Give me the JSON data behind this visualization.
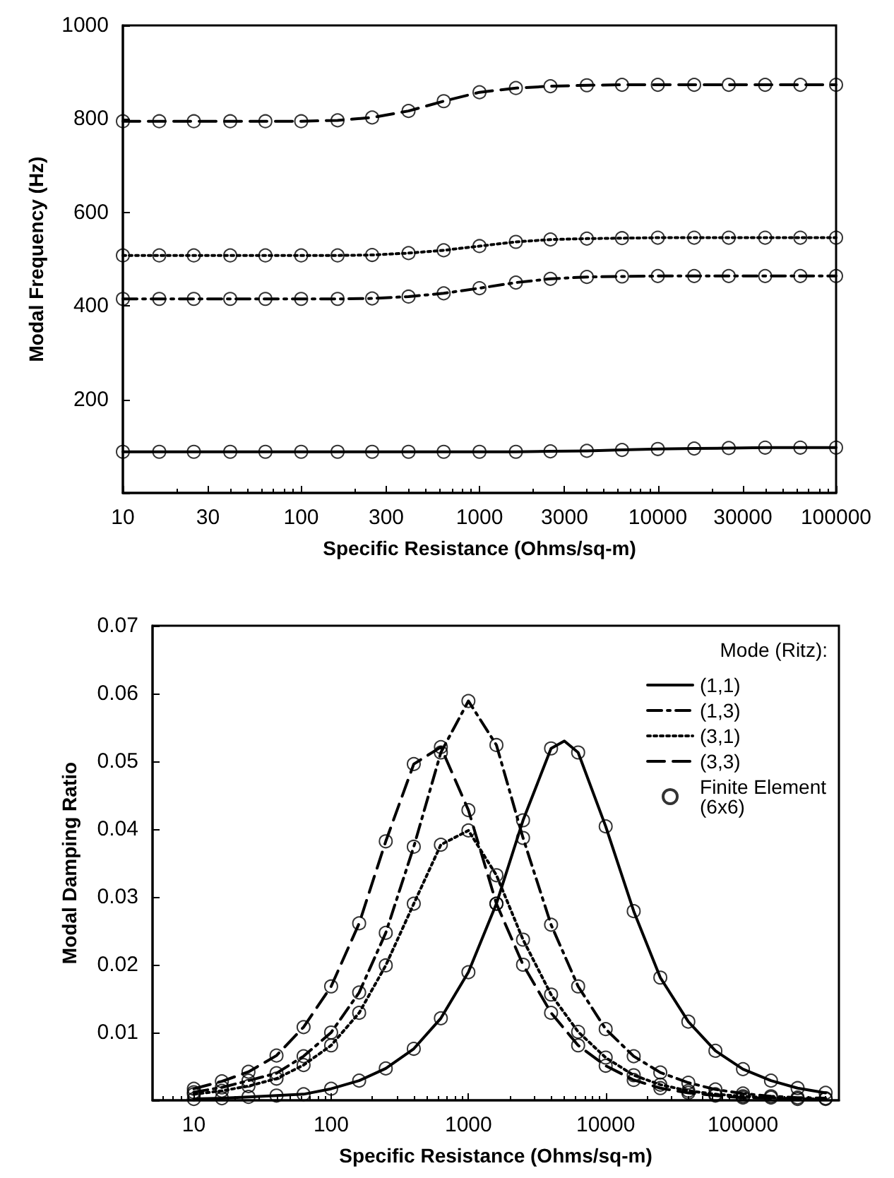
{
  "chart_data": [
    {
      "type": "line",
      "xlabel": "Specific Resistance (Ohms/sq-m)",
      "ylabel": "Modal Frequency (Hz)",
      "log": "x",
      "xlim": [
        10,
        100000
      ],
      "ylim": [
        0,
        1000
      ],
      "xticks": [
        10,
        30,
        100,
        300,
        1000,
        3000,
        10000,
        30000,
        100000
      ],
      "yticks": [
        {
          "value": 0,
          "label": null
        },
        200,
        400,
        600,
        800,
        1000
      ],
      "grid": false,
      "legend": false,
      "x": [
        10,
        16,
        25,
        40,
        63,
        100,
        160,
        250,
        400,
        630,
        1000,
        1600,
        2500,
        4000,
        6300,
        10000,
        16000,
        25000,
        40000,
        63000,
        100000
      ],
      "series": [
        {
          "type": "line",
          "color": "#000000",
          "line_style": "solid",
          "marker": "none",
          "values": [
            88,
            88,
            88,
            88,
            88,
            88,
            88,
            88,
            88,
            88,
            88,
            88,
            89,
            90,
            92,
            94,
            95,
            96,
            97,
            97,
            97
          ]
        },
        {
          "type": "line",
          "color": "#000000",
          "line_style": "dashdot",
          "marker": "none",
          "values": [
            415,
            415,
            415,
            415,
            415,
            415,
            415,
            416,
            420,
            427,
            438,
            450,
            458,
            462,
            463,
            464,
            464,
            464,
            464,
            464,
            464
          ]
        },
        {
          "type": "line",
          "color": "#000000",
          "line_style": "dotted",
          "marker": "none",
          "values": [
            508,
            508,
            508,
            508,
            508,
            508,
            508,
            509,
            513,
            519,
            528,
            537,
            542,
            544,
            545,
            546,
            546,
            546,
            546,
            546,
            546
          ]
        },
        {
          "type": "line",
          "color": "#000000",
          "line_style": "dashed",
          "marker": "none",
          "values": [
            795,
            795,
            795,
            795,
            795,
            795,
            797,
            803,
            817,
            838,
            857,
            866,
            870,
            872,
            873,
            873,
            873,
            873,
            873,
            873,
            873
          ]
        },
        {
          "type": "scatter",
          "color": "#000000",
          "marker": "circle",
          "values": [
            88,
            88,
            88,
            88,
            88,
            88,
            88,
            88,
            88,
            88,
            88,
            88,
            89,
            90,
            92,
            94,
            95,
            96,
            97,
            97,
            97
          ]
        },
        {
          "type": "scatter",
          "color": "#000000",
          "marker": "circle",
          "values": [
            415,
            415,
            415,
            415,
            415,
            415,
            415,
            416,
            420,
            427,
            438,
            450,
            458,
            462,
            463,
            464,
            464,
            464,
            464,
            464,
            464
          ]
        },
        {
          "type": "scatter",
          "color": "#000000",
          "marker": "circle",
          "values": [
            508,
            508,
            508,
            508,
            508,
            508,
            508,
            509,
            513,
            519,
            528,
            537,
            542,
            544,
            545,
            546,
            546,
            546,
            546,
            546,
            546
          ]
        },
        {
          "type": "scatter",
          "color": "#000000",
          "marker": "circle",
          "values": [
            795,
            795,
            795,
            795,
            795,
            795,
            797,
            803,
            817,
            838,
            857,
            866,
            870,
            872,
            873,
            873,
            873,
            873,
            873,
            873,
            873
          ]
        }
      ]
    },
    {
      "type": "line",
      "xlabel": "Specific Resistance (Ohms/sq-m)",
      "ylabel": "Modal Damping Ratio",
      "log": "x",
      "xlim": [
        5,
        500000
      ],
      "ylim": [
        0,
        0.07
      ],
      "xticks": [
        10,
        100,
        1000,
        10000,
        100000
      ],
      "yticks": [
        {
          "value": 0,
          "label": null
        },
        0.01,
        0.02,
        0.03,
        0.04,
        0.05,
        0.06,
        0.07
      ],
      "grid": false,
      "legend": "top right",
      "legend_title": "Mode (Ritz):",
      "x": [
        10,
        16,
        25,
        40,
        63,
        100,
        160,
        250,
        400,
        630,
        1000,
        1600,
        2500,
        4000,
        6300,
        10000,
        16000,
        25000,
        40000,
        63000,
        100000,
        160000,
        250000,
        400000
      ],
      "series": [
        {
          "type": "line",
          "name": "(1,1)",
          "color": "#000000",
          "line_style": "solid",
          "marker": "none",
          "x": [
            10,
            16,
            25,
            40,
            63,
            100,
            160,
            250,
            400,
            630,
            1000,
            1600,
            2500,
            4000,
            5000,
            6300,
            10000,
            16000,
            25000,
            40000,
            63000,
            100000,
            160000,
            250000,
            400000
          ],
          "values": [
            0.0002,
            0.0003,
            0.0005,
            0.0007,
            0.0009,
            0.0017,
            0.0029,
            0.0047,
            0.0076,
            0.0121,
            0.0189,
            0.029,
            0.0413,
            0.0519,
            0.053,
            0.0513,
            0.0404,
            0.0279,
            0.0181,
            0.0116,
            0.0073,
            0.0046,
            0.0029,
            0.0018,
            0.0011
          ]
        },
        {
          "type": "line",
          "name": "(1,3)",
          "color": "#000000",
          "line_style": "dashdot",
          "marker": "none",
          "values": [
            0.0012,
            0.0019,
            0.0029,
            0.004,
            0.0065,
            0.01,
            0.0159,
            0.0247,
            0.0374,
            0.0513,
            0.0589,
            0.0524,
            0.0387,
            0.0259,
            0.0168,
            0.0105,
            0.0065,
            0.0041,
            0.0026,
            0.0016,
            0.001,
            0.0006,
            0.0004,
            0.0003
          ]
        },
        {
          "type": "line",
          "name": "(3,1)",
          "color": "#000000",
          "line_style": "dotted",
          "marker": "none",
          "values": [
            0.0009,
            0.0014,
            0.0021,
            0.0032,
            0.0052,
            0.0081,
            0.0129,
            0.0199,
            0.029,
            0.0377,
            0.0398,
            0.0332,
            0.0237,
            0.0156,
            0.0101,
            0.0063,
            0.0037,
            0.0023,
            0.0014,
            0.0009,
            0.0006,
            0.0004,
            0.0002,
            0.0002
          ]
        },
        {
          "type": "line",
          "name": "(3,3)",
          "color": "#000000",
          "line_style": "dashed",
          "marker": "none",
          "values": [
            0.0017,
            0.0028,
            0.0042,
            0.0066,
            0.0108,
            0.0168,
            0.0261,
            0.0382,
            0.0496,
            0.0521,
            0.0428,
            0.029,
            0.02,
            0.0129,
            0.0081,
            0.0051,
            0.003,
            0.0018,
            0.0011,
            0.0007,
            0.0004,
            0.0003,
            0.0002,
            0.0001
          ]
        },
        {
          "type": "scatter",
          "name": "Finite Element (6x6)",
          "color": "#000000",
          "marker": "circle",
          "values": [
            0.0002,
            0.0003,
            0.0005,
            0.0007,
            0.0009,
            0.0017,
            0.0029,
            0.0047,
            0.0076,
            0.0121,
            0.0189,
            0.029,
            0.0413,
            0.0519,
            0.0513,
            0.0404,
            0.0279,
            0.0181,
            0.0116,
            0.0073,
            0.0046,
            0.0029,
            0.0018,
            0.0011
          ]
        },
        {
          "type": "scatter",
          "color": "#000000",
          "marker": "circle",
          "values": [
            0.0012,
            0.0019,
            0.0029,
            0.004,
            0.0065,
            0.01,
            0.0159,
            0.0247,
            0.0374,
            0.0513,
            0.0589,
            0.0524,
            0.0387,
            0.0259,
            0.0168,
            0.0105,
            0.0065,
            0.0041,
            0.0026,
            0.0016,
            0.001,
            0.0006,
            0.0004,
            0.0003
          ]
        },
        {
          "type": "scatter",
          "color": "#000000",
          "marker": "circle",
          "values": [
            0.0009,
            0.0014,
            0.0021,
            0.0032,
            0.0052,
            0.0081,
            0.0129,
            0.0199,
            0.029,
            0.0377,
            0.0398,
            0.0332,
            0.0237,
            0.0156,
            0.0101,
            0.0063,
            0.0037,
            0.0023,
            0.0014,
            0.0009,
            0.0006,
            0.0004,
            0.0002,
            0.0002
          ]
        },
        {
          "type": "scatter",
          "color": "#000000",
          "marker": "circle",
          "values": [
            0.0017,
            0.0028,
            0.0042,
            0.0066,
            0.0108,
            0.0168,
            0.0261,
            0.0382,
            0.0496,
            0.0521,
            0.0428,
            0.029,
            0.02,
            0.0129,
            0.0081,
            0.0051,
            0.003,
            0.0018,
            0.0011,
            0.0007,
            0.0004,
            null,
            null,
            null
          ]
        }
      ]
    }
  ]
}
